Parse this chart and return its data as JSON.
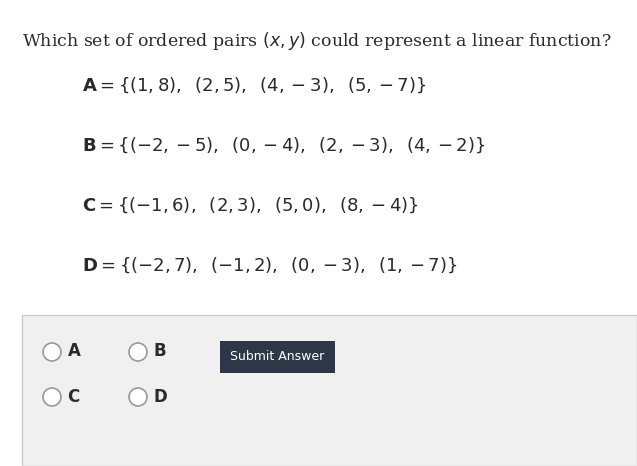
{
  "title": "Which set of ordered pairs $(x, y)$ could represent a linear function?",
  "lines": [
    "$\\mathbf{A} = \\{(1, 8),\\;\\; (2, 5),\\;\\; (4, -3),\\;\\; (5, -7)\\}$",
    "$\\mathbf{B} = \\{(-2, -5),\\;\\; (0, -4),\\;\\; (2, -3),\\;\\; (4, -2)\\}$",
    "$\\mathbf{C} = \\{(-1, 6),\\;\\; (2, 3),\\;\\; (5, 0),\\;\\; (8, -4)\\}$",
    "$\\mathbf{D} = \\{(-2, 7),\\;\\; (-1, 2),\\;\\; (0, -3),\\;\\; (1, -7)\\}$"
  ],
  "bg_color": "#ffffff",
  "radio_box_bg": "#f0f0f0",
  "radio_box_edge": "#cccccc",
  "answer_box_color": "#2d3748",
  "answer_box_text": "Submit Answer",
  "answer_box_text_color": "#ffffff",
  "title_fontsize": 12.5,
  "line_fontsize": 13.0,
  "text_color": "#2a2a2a"
}
